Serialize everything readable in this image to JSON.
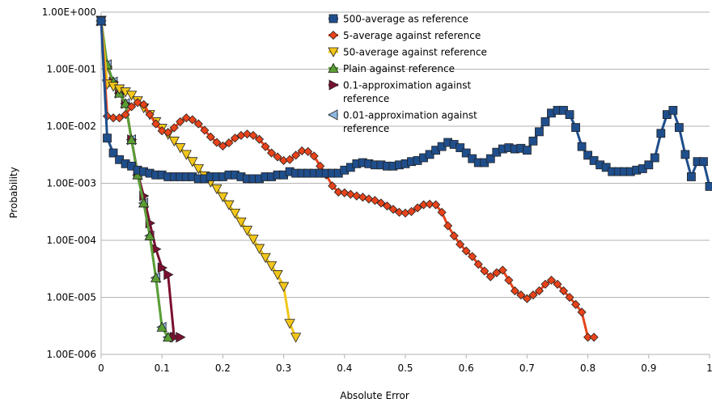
{
  "chart_data": {
    "type": "line",
    "title": "",
    "xlabel": "Absolute Error",
    "ylabel": "Probability",
    "y_scale": "log",
    "xlim": [
      0,
      1
    ],
    "ylim": [
      1e-06,
      1
    ],
    "x_ticks": [
      0,
      0.1,
      0.2,
      0.3,
      0.4,
      0.5,
      0.6,
      0.7,
      0.8,
      0.9,
      1
    ],
    "x_tick_labels": [
      "0",
      "0.1",
      "0.2",
      "0.3",
      "0.4",
      "0.5",
      "0.6",
      "0.7",
      "0.8",
      "0.9",
      "1"
    ],
    "y_ticks": [
      1,
      0.1,
      0.01,
      0.001,
      0.0001,
      1e-05,
      1e-06
    ],
    "y_tick_labels": [
      "1.00E+000",
      "1.00E-001",
      "1.00E-002",
      "1.00E-003",
      "1.00E-004",
      "1.00E-005",
      "1.00E-006"
    ],
    "grid": "horizontal major",
    "legend_position": "top-center",
    "series": [
      {
        "name": "500-average as reference",
        "color": "#1f4e8c",
        "marker": "square",
        "x": [
          0,
          0.01,
          0.02,
          0.03,
          0.04,
          0.05,
          0.06,
          0.07,
          0.08,
          0.09,
          0.1,
          0.11,
          0.12,
          0.13,
          0.14,
          0.15,
          0.16,
          0.17,
          0.18,
          0.19,
          0.2,
          0.21,
          0.22,
          0.23,
          0.24,
          0.25,
          0.26,
          0.27,
          0.28,
          0.29,
          0.3,
          0.31,
          0.32,
          0.33,
          0.34,
          0.35,
          0.36,
          0.37,
          0.38,
          0.39,
          0.4,
          0.41,
          0.42,
          0.43,
          0.44,
          0.45,
          0.46,
          0.47,
          0.48,
          0.49,
          0.5,
          0.51,
          0.52,
          0.53,
          0.54,
          0.55,
          0.56,
          0.57,
          0.58,
          0.59,
          0.6,
          0.61,
          0.62,
          0.63,
          0.64,
          0.65,
          0.66,
          0.67,
          0.68,
          0.69,
          0.7,
          0.71,
          0.72,
          0.73,
          0.74,
          0.75,
          0.76,
          0.77,
          0.78,
          0.79,
          0.8,
          0.81,
          0.82,
          0.83,
          0.84,
          0.85,
          0.86,
          0.87,
          0.88,
          0.89,
          0.9,
          0.91,
          0.92,
          0.93,
          0.94,
          0.95,
          0.96,
          0.97,
          0.98,
          0.99,
          1.0
        ],
        "y": [
          0.7,
          0.0062,
          0.0034,
          0.0026,
          0.0022,
          0.002,
          0.0017,
          0.0016,
          0.0015,
          0.0014,
          0.0014,
          0.0013,
          0.0013,
          0.0013,
          0.0013,
          0.0013,
          0.0012,
          0.0012,
          0.0013,
          0.0013,
          0.0013,
          0.0014,
          0.0014,
          0.0013,
          0.0012,
          0.0012,
          0.0012,
          0.0013,
          0.0013,
          0.0014,
          0.0014,
          0.0016,
          0.0015,
          0.0015,
          0.0015,
          0.0015,
          0.0015,
          0.0015,
          0.0015,
          0.0015,
          0.0017,
          0.0019,
          0.0022,
          0.0023,
          0.0022,
          0.0021,
          0.0021,
          0.002,
          0.002,
          0.0021,
          0.0022,
          0.0024,
          0.0025,
          0.0028,
          0.0032,
          0.0038,
          0.0044,
          0.0052,
          0.0048,
          0.0042,
          0.0034,
          0.0027,
          0.0023,
          0.0023,
          0.0027,
          0.0035,
          0.004,
          0.0042,
          0.004,
          0.0041,
          0.0038,
          0.0055,
          0.008,
          0.012,
          0.017,
          0.019,
          0.019,
          0.016,
          0.0095,
          0.0044,
          0.0031,
          0.0025,
          0.0021,
          0.0019,
          0.0016,
          0.0016,
          0.0016,
          0.0016,
          0.0017,
          0.0018,
          0.0021,
          0.0028,
          0.0075,
          0.016,
          0.019,
          0.0095,
          0.0032,
          0.0013,
          0.0024,
          0.0024,
          0.00088
        ]
      },
      {
        "name": "5-average against reference",
        "color": "#e8431a",
        "marker": "diamond",
        "x": [
          0,
          0.01,
          0.02,
          0.03,
          0.04,
          0.05,
          0.06,
          0.07,
          0.08,
          0.09,
          0.1,
          0.11,
          0.12,
          0.13,
          0.14,
          0.15,
          0.16,
          0.17,
          0.18,
          0.19,
          0.2,
          0.21,
          0.22,
          0.23,
          0.24,
          0.25,
          0.26,
          0.27,
          0.28,
          0.29,
          0.3,
          0.31,
          0.32,
          0.33,
          0.34,
          0.35,
          0.36,
          0.37,
          0.38,
          0.39,
          0.4,
          0.41,
          0.42,
          0.43,
          0.44,
          0.45,
          0.46,
          0.47,
          0.48,
          0.49,
          0.5,
          0.51,
          0.52,
          0.53,
          0.54,
          0.55,
          0.56,
          0.57,
          0.58,
          0.59,
          0.6,
          0.61,
          0.62,
          0.63,
          0.64,
          0.65,
          0.66,
          0.67,
          0.68,
          0.69,
          0.7,
          0.71,
          0.72,
          0.73,
          0.74,
          0.75,
          0.76,
          0.77,
          0.78,
          0.79,
          0.8,
          0.81
        ],
        "y": [
          0.7,
          0.015,
          0.014,
          0.014,
          0.016,
          0.022,
          0.026,
          0.024,
          0.016,
          0.011,
          0.0083,
          0.0078,
          0.0094,
          0.012,
          0.014,
          0.013,
          0.011,
          0.0085,
          0.0065,
          0.0052,
          0.0045,
          0.0051,
          0.0062,
          0.0069,
          0.0073,
          0.0069,
          0.0059,
          0.0044,
          0.0034,
          0.0029,
          0.0025,
          0.0026,
          0.0031,
          0.0037,
          0.0036,
          0.003,
          0.002,
          0.0014,
          0.0009,
          0.0007,
          0.00068,
          0.00064,
          0.0006,
          0.00057,
          0.00053,
          0.0005,
          0.00045,
          0.0004,
          0.00035,
          0.00031,
          0.0003,
          0.00032,
          0.00037,
          0.00042,
          0.00043,
          0.00042,
          0.00031,
          0.00018,
          0.00012,
          8.5e-05,
          6.5e-05,
          5.2e-05,
          3.8e-05,
          2.9e-05,
          2.3e-05,
          2.7e-05,
          3e-05,
          2e-05,
          1.3e-05,
          1.1e-05,
          9.5e-06,
          1.1e-05,
          1.3e-05,
          1.7e-05,
          2e-05,
          1.7e-05,
          1.3e-05,
          1e-05,
          7.5e-06,
          5.5e-06,
          2e-06,
          2e-06
        ]
      },
      {
        "name": "50-average against reference",
        "color": "#f2c61a",
        "marker": "triangle-down",
        "x": [
          0,
          0.01,
          0.02,
          0.03,
          0.04,
          0.05,
          0.06,
          0.07,
          0.08,
          0.09,
          0.1,
          0.11,
          0.12,
          0.13,
          0.14,
          0.15,
          0.16,
          0.17,
          0.18,
          0.19,
          0.2,
          0.21,
          0.22,
          0.23,
          0.24,
          0.25,
          0.26,
          0.27,
          0.28,
          0.29,
          0.3,
          0.31,
          0.32
        ],
        "y": [
          0.72,
          0.055,
          0.05,
          0.045,
          0.04,
          0.035,
          0.028,
          0.021,
          0.016,
          0.012,
          0.0092,
          0.0072,
          0.0055,
          0.0042,
          0.0032,
          0.0024,
          0.0018,
          0.00135,
          0.00105,
          0.0008,
          0.00058,
          0.00042,
          0.0003,
          0.00021,
          0.00015,
          0.000105,
          7.2e-05,
          5e-05,
          3.6e-05,
          2.5e-05,
          1.55e-05,
          3.5e-06,
          2e-06
        ]
      },
      {
        "name": "Plain against reference",
        "color": "#5a9e34",
        "marker": "triangle-up",
        "x": [
          0,
          0.01,
          0.02,
          0.03,
          0.04,
          0.05,
          0.06,
          0.07,
          0.08,
          0.09,
          0.1,
          0.11
        ],
        "y": [
          0.7,
          0.12,
          0.06,
          0.038,
          0.025,
          0.0058,
          0.0014,
          0.00045,
          0.00012,
          2.2e-05,
          3e-06,
          2e-06
        ]
      },
      {
        "name": "0.1-approximation against reference",
        "color": "#7a1030",
        "marker": "triangle-right",
        "x": [
          0,
          0.01,
          0.02,
          0.03,
          0.04,
          0.05,
          0.06,
          0.07,
          0.08,
          0.09,
          0.1,
          0.11,
          0.12,
          0.13
        ],
        "y": [
          0.7,
          0.11,
          0.06,
          0.038,
          0.025,
          0.0058,
          0.0015,
          0.0006,
          0.0002,
          7e-05,
          3.3e-05,
          2.5e-05,
          2e-06,
          2e-06
        ]
      },
      {
        "name": "0.01-approximation against reference",
        "color": "#8fb8e0",
        "marker": "triangle-left",
        "x": [
          0,
          0.01,
          0.02,
          0.03,
          0.04,
          0.05,
          0.06,
          0.07,
          0.08,
          0.09,
          0.1,
          0.11
        ],
        "y": [
          0.7,
          0.12,
          0.06,
          0.038,
          0.025,
          0.0058,
          0.0014,
          0.00045,
          0.00012,
          2.2e-05,
          3e-06,
          2e-06
        ]
      }
    ]
  }
}
